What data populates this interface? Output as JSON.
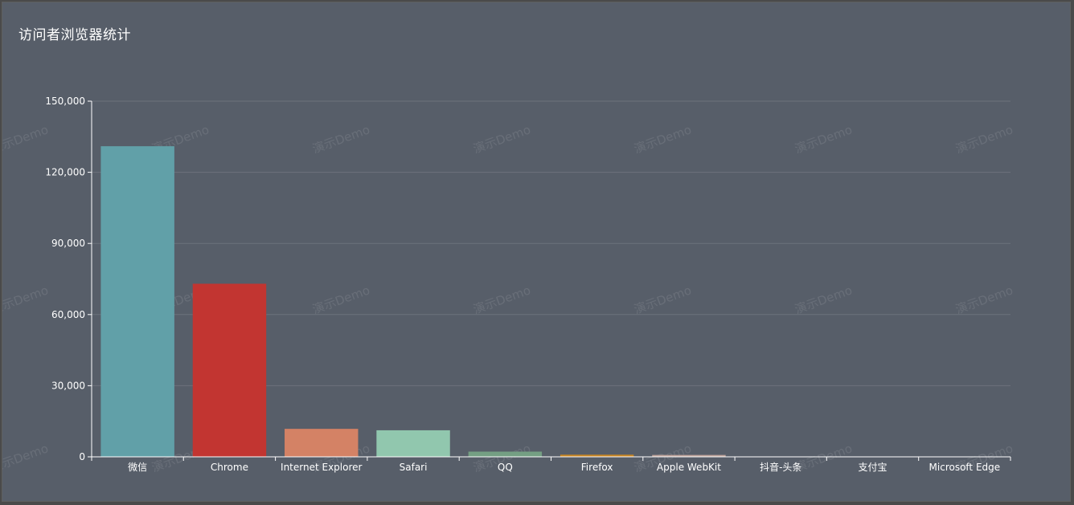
{
  "title": "访问者浏览器统计",
  "watermark": "演示Demo",
  "colors": {
    "background": "#575e69",
    "axis": "#ffffff",
    "grid": "#6c727c"
  },
  "chart_data": {
    "type": "bar",
    "title": "访问者浏览器统计",
    "xlabel": "",
    "ylabel": "",
    "categories": [
      "微信",
      "Chrome",
      "Internet Explorer",
      "Safari",
      "QQ",
      "Firefox",
      "Apple WebKit",
      "抖音-头条",
      "支付宝",
      "Microsoft Edge"
    ],
    "values": [
      131000,
      73000,
      11800,
      11200,
      2200,
      900,
      800,
      60,
      40,
      20
    ],
    "bar_colors": [
      "#61a0a8",
      "#c23531",
      "#d48265",
      "#91c7ae",
      "#749f83",
      "#ca8622",
      "#bda29a",
      "#6e7074",
      "#546570",
      "#c4ccd3"
    ],
    "ylim": [
      0,
      150000
    ],
    "yticks": [
      0,
      30000,
      60000,
      90000,
      120000,
      150000
    ],
    "ytick_labels": [
      "0",
      "30,000",
      "60,000",
      "90,000",
      "120,000",
      "150,000"
    ],
    "grid": true,
    "legend": "none"
  }
}
